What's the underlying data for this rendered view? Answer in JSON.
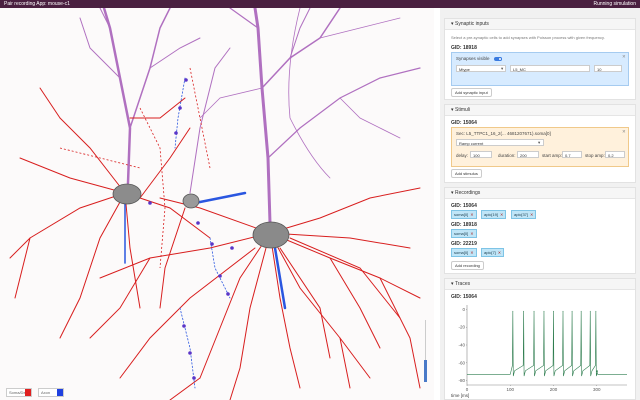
{
  "app": {
    "title": "Pair recording App: mouse-c1",
    "status": "Running simulation"
  },
  "legend": {
    "items": [
      {
        "label": "Soma/Dend",
        "color": "#e02020"
      },
      {
        "label": "Axon",
        "color": "#2040e0"
      }
    ]
  },
  "synaptic_inputs": {
    "header": "Synaptic inputs",
    "hint": "Select a pre-synaptic cells to add synapses with Poisson process with given frequency.",
    "gid_label": "GID: 18918",
    "toggle_label": "Synapses visible",
    "type_value": "Mtype",
    "mtype_value": "L5_MC",
    "freq_value": "10",
    "add_button": "Add synaptic input"
  },
  "stimuli": {
    "header": "Stimuli",
    "gid_label": "GID: 15064",
    "section_label": "Sec: L5_TTPC1_16_2(... 4681207671).soma[0]",
    "protocol_value": "Ramp current",
    "fields": [
      {
        "label": "delay:",
        "value": "100"
      },
      {
        "label": "duration:",
        "value": "200"
      },
      {
        "label": "start amp:",
        "value": "0.7"
      },
      {
        "label": "stop amp:",
        "value": "0.2"
      }
    ],
    "add_button": "Add stimulus"
  },
  "recordings": {
    "header": "Recordings",
    "groups": [
      {
        "gid": "GID: 15064",
        "tags": [
          "soma[0]",
          "apic[19]",
          "apic[37]"
        ]
      },
      {
        "gid": "GID: 18918",
        "tags": [
          "soma[0]"
        ]
      },
      {
        "gid": "GID: 22219",
        "tags": [
          "soma[0]",
          "apic[7]"
        ]
      }
    ],
    "add_button": "Add recording"
  },
  "traces": {
    "header": "Traces",
    "gid_label": "GID: 15064",
    "xlabel": "time [ms]"
  },
  "chart_data": {
    "type": "line",
    "title": "",
    "xlabel": "time [ms]",
    "ylabel": "",
    "xlim": [
      0,
      370
    ],
    "ylim": [
      -85,
      5
    ],
    "xticks": [
      0,
      100,
      200,
      300
    ],
    "yticks": [
      -80,
      -60,
      -40,
      -20,
      0
    ],
    "grid": false,
    "series": [
      {
        "color": "#2e7d4f",
        "rest_mv": -73,
        "stim_start_ms": 100,
        "stim_end_ms": 300,
        "spike_peak_mv": -2,
        "spike_times_ms": [
          106,
          131,
          155,
          178,
          200,
          222,
          243,
          264,
          285,
          298
        ]
      }
    ]
  }
}
